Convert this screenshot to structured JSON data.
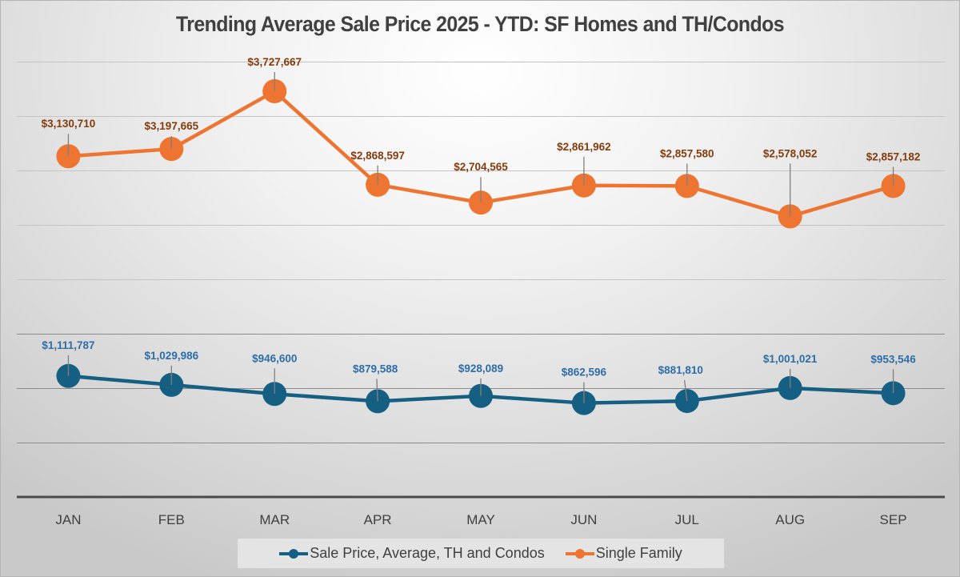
{
  "chart_data": {
    "type": "line",
    "title": "Trending Average Sale Price 2025 - YTD:  SF Homes and TH/Condos",
    "xlabel": "",
    "ylabel": "",
    "categories": [
      "JAN",
      "FEB",
      "MAR",
      "APR",
      "MAY",
      "JUN",
      "JUL",
      "AUG",
      "SEP"
    ],
    "ylim": [
      0,
      4000000
    ],
    "y_gridline_step": 500000,
    "y_tick_labels_visible": false,
    "grid": true,
    "legend_position": "bottom",
    "series": [
      {
        "name": "Sale Price, Average, TH and Condos",
        "color": "#156082",
        "label_color": "#2E6DA8",
        "values": [
          1111787,
          1029986,
          946600,
          879588,
          928089,
          862596,
          881810,
          1001021,
          953546
        ],
        "labels": [
          "$1,111,787",
          "$1,029,986",
          "$946,600",
          "$879,588",
          "$928,089",
          "$862,596",
          "$881,810",
          "$1,001,021",
          "$953,546"
        ]
      },
      {
        "name": "Single Family",
        "color": "#ED7531",
        "label_color": "#843C0C",
        "values": [
          3130710,
          3197665,
          3727667,
          2868597,
          2704565,
          2861962,
          2857580,
          2578052,
          2857182
        ],
        "labels": [
          "$3,130,710",
          "$3,197,665",
          "$3,727,667",
          "$2,868,597",
          "$2,704,565",
          "$2,861,962",
          "$2,857,580",
          "$2,578,052",
          "$2,857,182"
        ]
      }
    ]
  }
}
